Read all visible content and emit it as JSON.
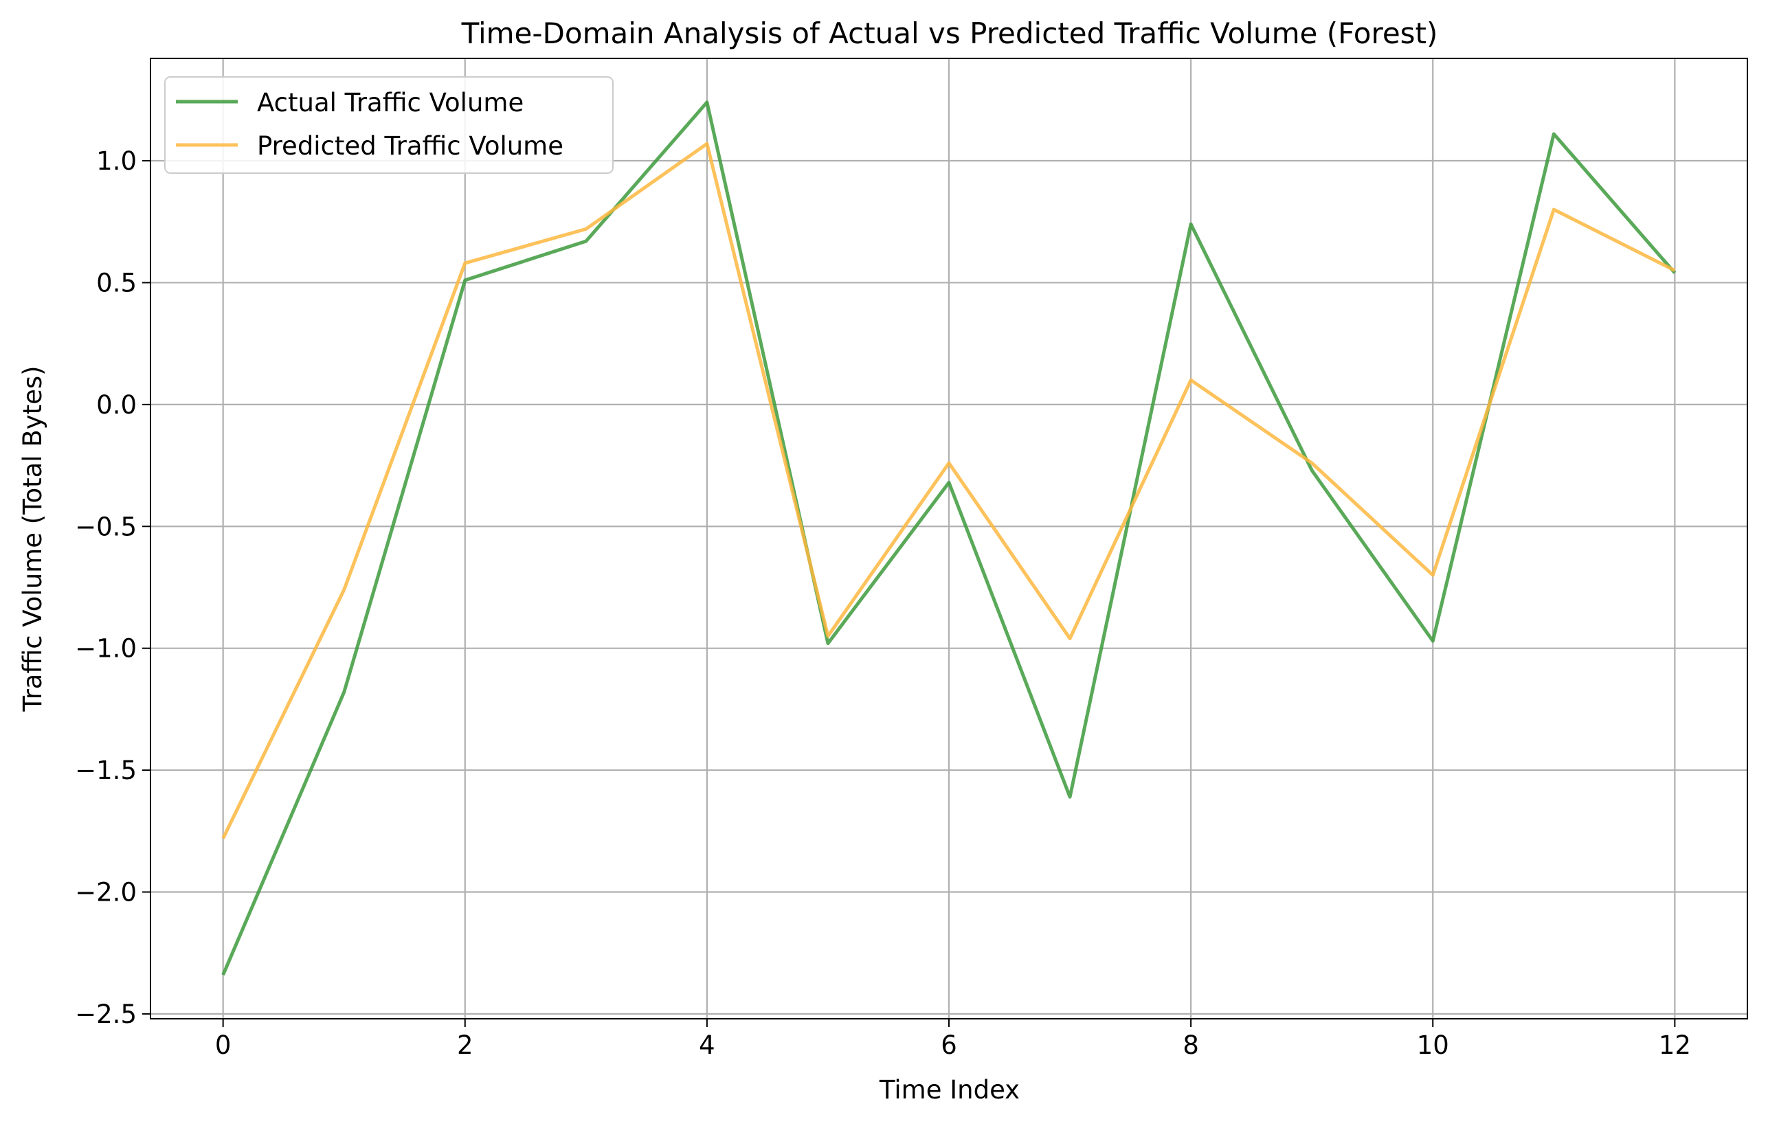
{
  "chart_data": {
    "type": "line",
    "title": "Time-Domain Analysis of Actual vs Predicted Traffic Volume (Forest)",
    "xlabel": "Time Index",
    "ylabel": "Traffic Volume (Total Bytes)",
    "xlim": [
      -0.6,
      12.6
    ],
    "ylim": [
      -2.52,
      1.42
    ],
    "xticks": [
      0,
      2,
      4,
      6,
      8,
      10,
      12
    ],
    "xtick_labels": [
      "0",
      "2",
      "4",
      "6",
      "8",
      "10",
      "12"
    ],
    "yticks": [
      1.0,
      0.5,
      0.0,
      -0.5,
      -1.0,
      -1.5,
      -2.0,
      -2.5
    ],
    "ytick_labels": [
      "1.0",
      "0.5",
      "0.0",
      "−0.5",
      "−1.0",
      "−1.5",
      "−2.0",
      "−2.5"
    ],
    "grid": true,
    "legend_position": "top-left",
    "x": [
      0,
      1,
      2,
      3,
      4,
      5,
      6,
      7,
      8,
      9,
      10,
      11,
      12
    ],
    "series": [
      {
        "name": "Actual Traffic Volume",
        "color": "#3c9a3c",
        "values": [
          -2.34,
          -1.18,
          0.51,
          0.67,
          1.24,
          -0.98,
          -0.32,
          -1.61,
          0.74,
          -0.27,
          -0.97,
          1.11,
          0.54
        ]
      },
      {
        "name": "Predicted Traffic Volume",
        "color": "#fdb73e",
        "values": [
          -1.78,
          -0.76,
          0.58,
          0.72,
          1.07,
          -0.95,
          -0.24,
          -0.96,
          0.1,
          -0.24,
          -0.7,
          0.8,
          0.55
        ]
      }
    ]
  }
}
